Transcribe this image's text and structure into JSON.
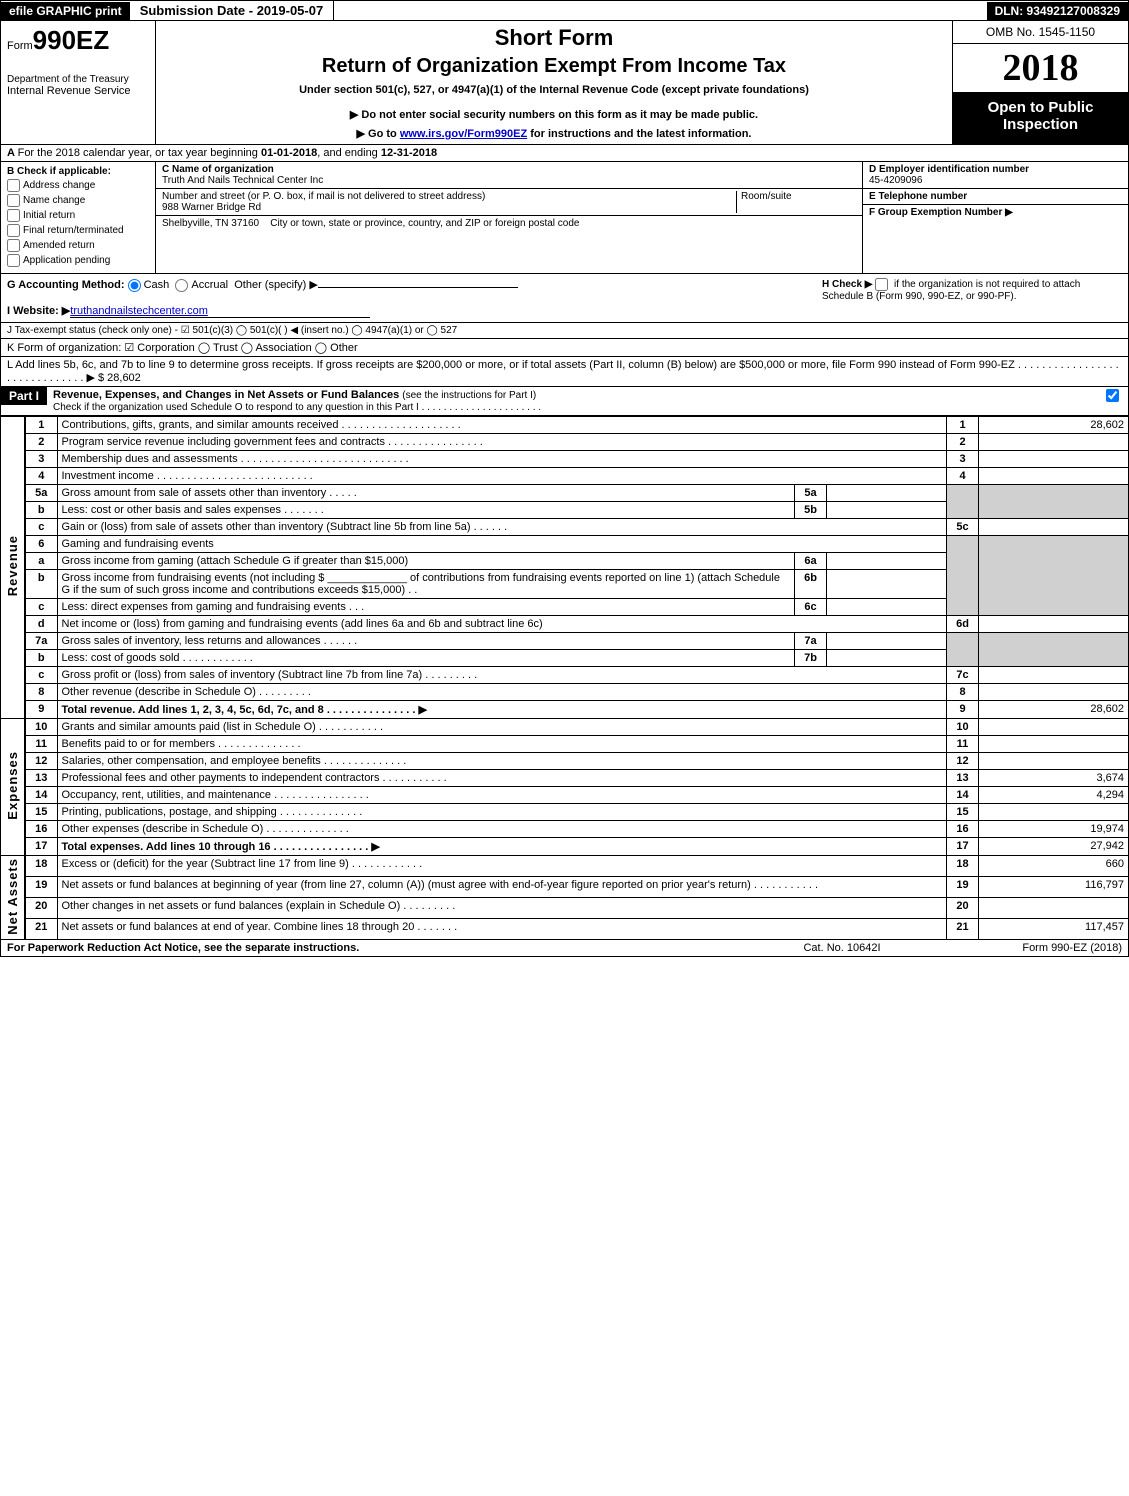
{
  "top": {
    "print": "efile GRAPHIC print",
    "submission": "Submission Date - 2019-05-07",
    "dln": "DLN: 93492127008329"
  },
  "header": {
    "form_prefix": "Form",
    "form_code": "990EZ",
    "dept": "Department of the Treasury",
    "irs": "Internal Revenue Service",
    "short_form": "Short Form",
    "title": "Return of Organization Exempt From Income Tax",
    "under": "Under section 501(c), 527, or 4947(a)(1) of the Internal Revenue Code (except private foundations)",
    "donot": "▶ Do not enter social security numbers on this form as it may be made public.",
    "goto_pre": "▶ Go to ",
    "goto_link": "www.irs.gov/Form990EZ",
    "goto_post": " for instructions and the latest information.",
    "omb": "OMB No. 1545-1150",
    "year": "2018",
    "open": "Open to Public Inspection"
  },
  "A": {
    "text_pre": "For the 2018 calendar year, or tax year beginning ",
    "begin": "01-01-2018",
    "mid": ", and ending ",
    "end": "12-31-2018"
  },
  "B": {
    "label": "Check if applicable:",
    "opts": [
      "Address change",
      "Name change",
      "Initial return",
      "Final return/terminated",
      "Amended return",
      "Application pending"
    ]
  },
  "C": {
    "name_lbl": "C Name of organization",
    "name": "Truth And Nails Technical Center Inc",
    "addr_lbl": "Number and street (or P. O. box, if mail is not delivered to street address)",
    "addr": "988 Warner Bridge Rd",
    "room_lbl": "Room/suite",
    "city_lbl": "City or town, state or province, country, and ZIP or foreign postal code",
    "city": "Shelbyville, TN  37160"
  },
  "D": {
    "lbl": "D Employer identification number",
    "val": "45-4209096"
  },
  "E": {
    "lbl": "E Telephone number",
    "val": ""
  },
  "F": {
    "lbl": "F Group Exemption Number ▶",
    "val": ""
  },
  "G": {
    "lbl": "G Accounting Method:",
    "cash": "Cash",
    "accrual": "Accrual",
    "other": "Other (specify) ▶"
  },
  "H": {
    "lbl": "H  Check ▶",
    "text": "if the organization is not required to attach Schedule B (Form 990, 990-EZ, or 990-PF)."
  },
  "I": {
    "lbl": "I Website: ▶",
    "val": "truthandnailstechcenter.com"
  },
  "J": {
    "text": "J Tax-exempt status (check only one) - ☑ 501(c)(3) ◯ 501(c)( ) ◀ (insert no.) ◯ 4947(a)(1) or ◯ 527"
  },
  "K": {
    "text": "K Form of organization: ☑ Corporation  ◯ Trust  ◯ Association  ◯ Other"
  },
  "L": {
    "text": "L Add lines 5b, 6c, and 7b to line 9 to determine gross receipts. If gross receipts are $200,000 or more, or if total assets (Part II, column (B) below) are $500,000 or more, file Form 990 instead of Form 990-EZ  . . . . . . . . . . . . . . . . . . . . . . . . . . . . . . ▶ $ 28,602"
  },
  "part1": {
    "label": "Part I",
    "title": "Revenue, Expenses, and Changes in Net Assets or Fund Balances ",
    "title_sub": "(see the instructions for Part I)",
    "check_line": "Check if the organization used Schedule O to respond to any question in this Part I . . . . . . . . . . . . . . . . . . . . . ."
  },
  "sections": {
    "revenue": "Revenue",
    "expenses": "Expenses",
    "netassets": "Net Assets"
  },
  "lines": {
    "l1": {
      "n": "1",
      "d": "Contributions, gifts, grants, and similar amounts received  . . . . . . . . . . . . . . . . . . . .",
      "rn": "1",
      "rv": "28,602"
    },
    "l2": {
      "n": "2",
      "d": "Program service revenue including government fees and contracts  . . . . . . . . . . . . . . . .",
      "rn": "2",
      "rv": ""
    },
    "l3": {
      "n": "3",
      "d": "Membership dues and assessments  . . . . . . . . . . . . . . . . . . . . . . . . . . . .",
      "rn": "3",
      "rv": ""
    },
    "l4": {
      "n": "4",
      "d": "Investment income  . . . . . . . . . . . . . . . . . . . . . . . . . .",
      "rn": "4",
      "rv": ""
    },
    "l5a": {
      "n": "5a",
      "d": "Gross amount from sale of assets other than inventory  . . . . .",
      "mn": "5a",
      "mv": ""
    },
    "l5b": {
      "n": "b",
      "d": "Less: cost or other basis and sales expenses  . . . . . . .",
      "mn": "5b",
      "mv": ""
    },
    "l5c": {
      "n": "c",
      "d": "Gain or (loss) from sale of assets other than inventory (Subtract line 5b from line 5a)         .  .  .  .  .  .",
      "rn": "5c",
      "rv": ""
    },
    "l6": {
      "n": "6",
      "d": "Gaming and fundraising events"
    },
    "l6a": {
      "n": "a",
      "d": "Gross income from gaming (attach Schedule G if greater than $15,000)",
      "mn": "6a",
      "mv": ""
    },
    "l6b": {
      "n": "b",
      "d": "Gross income from fundraising events (not including $ _____________ of contributions from fundraising events reported on line 1) (attach Schedule G if the sum of such gross income and contributions exceeds $15,000)    .  .",
      "mn": "6b",
      "mv": ""
    },
    "l6c": {
      "n": "c",
      "d": "Less: direct expenses from gaming and fundraising events        .  .  .",
      "mn": "6c",
      "mv": ""
    },
    "l6d": {
      "n": "d",
      "d": "Net income or (loss) from gaming and fundraising events (add lines 6a and 6b and subtract line 6c)",
      "rn": "6d",
      "rv": ""
    },
    "l7a": {
      "n": "7a",
      "d": "Gross sales of inventory, less returns and allowances          .  .  .  .  .  .",
      "mn": "7a",
      "mv": ""
    },
    "l7b": {
      "n": "b",
      "d": "Less: cost of goods sold                  .  .  .  .  .  .  .  .  .  .  .  .",
      "mn": "7b",
      "mv": ""
    },
    "l7c": {
      "n": "c",
      "d": "Gross profit or (loss) from sales of inventory (Subtract line 7b from line 7a)         .  .  .  .  .  .  .  .  .",
      "rn": "7c",
      "rv": ""
    },
    "l8": {
      "n": "8",
      "d": "Other revenue (describe in Schedule O)                 .  .  .  .  .  .  .  .  .",
      "rn": "8",
      "rv": ""
    },
    "l9": {
      "n": "9",
      "d": "Total revenue. Add lines 1, 2, 3, 4, 5c, 6d, 7c, and 8       .  .  .  .  .  .  .  .  .  .  .  .  .  .  . ▶",
      "rn": "9",
      "rv": "28,602"
    },
    "l10": {
      "n": "10",
      "d": "Grants and similar amounts paid (list in Schedule O)         .  .  .  .  .  .  .  .  .  .  .",
      "rn": "10",
      "rv": ""
    },
    "l11": {
      "n": "11",
      "d": "Benefits paid to or for members               .  .  .  .  .  .  .  .  .  .  .  .  .  .",
      "rn": "11",
      "rv": ""
    },
    "l12": {
      "n": "12",
      "d": "Salaries, other compensation, and employee benefits       .  .  .  .  .  .  .  .  .  .  .  .  .  .",
      "rn": "12",
      "rv": ""
    },
    "l13": {
      "n": "13",
      "d": "Professional fees and other payments to independent contractors     .  .  .  .  .  .  .  .  .  .  .",
      "rn": "13",
      "rv": "3,674"
    },
    "l14": {
      "n": "14",
      "d": "Occupancy, rent, utilities, and maintenance        .  .  .  .  .  .  .  .  .  .  .  .  .  .  .  .",
      "rn": "14",
      "rv": "4,294"
    },
    "l15": {
      "n": "15",
      "d": "Printing, publications, postage, and shipping         .  .  .  .  .  .  .  .  .  .  .  .  .  .",
      "rn": "15",
      "rv": ""
    },
    "l16": {
      "n": "16",
      "d": "Other expenses (describe in Schedule O)          .  .  .  .  .  .  .  .  .  .  .  .  .  .",
      "rn": "16",
      "rv": "19,974"
    },
    "l17": {
      "n": "17",
      "d": "Total expenses. Add lines 10 through 16        .  .  .  .  .  .  .  .  .  .  .  .  .  .  .  . ▶",
      "rn": "17",
      "rv": "27,942"
    },
    "l18": {
      "n": "18",
      "d": "Excess or (deficit) for the year (Subtract line 17 from line 9)        .  .  .  .  .  .  .  .  .  .  .  .",
      "rn": "18",
      "rv": "660"
    },
    "l19": {
      "n": "19",
      "d": "Net assets or fund balances at beginning of year (from line 27, column (A)) (must agree with end-of-year figure reported on prior year's return)        .  .  .  .  .  .  .  .  .  .  .",
      "rn": "19",
      "rv": "116,797"
    },
    "l20": {
      "n": "20",
      "d": "Other changes in net assets or fund balances (explain in Schedule O)      .  .  .  .  .  .  .  .  .",
      "rn": "20",
      "rv": ""
    },
    "l21": {
      "n": "21",
      "d": "Net assets or fund balances at end of year. Combine lines 18 through 20       .  .  .  .  .  .  .",
      "rn": "21",
      "rv": "117,457"
    }
  },
  "footer": {
    "left": "For Paperwork Reduction Act Notice, see the separate instructions.",
    "mid": "Cat. No. 10642I",
    "right": "Form 990-EZ (2018)"
  },
  "colors": {
    "black": "#000000",
    "white": "#ffffff",
    "shade": "#d0d0d0",
    "link": "#0000cc"
  }
}
